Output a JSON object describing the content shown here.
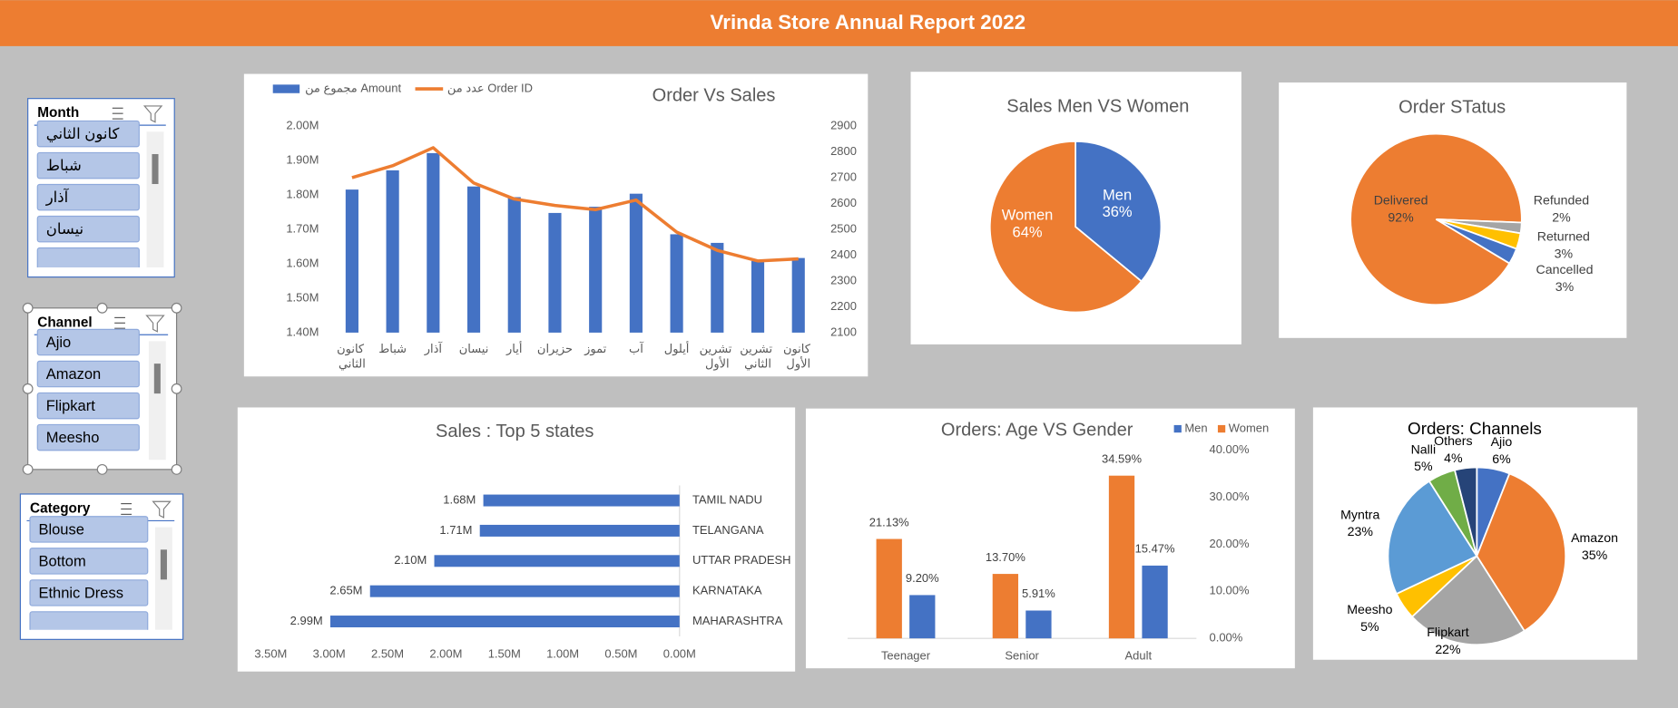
{
  "header": {
    "title": "Vrinda Store Annual Report 2022"
  },
  "slicers": [
    {
      "title": "Month",
      "items": [
        "كانون الثاني",
        "شباط",
        "آذار",
        "نيسان"
      ]
    },
    {
      "title": "Channel",
      "items": [
        "Ajio",
        "Amazon",
        "Flipkart",
        "Meesho"
      ]
    },
    {
      "title": "Category",
      "items": [
        "Blouse",
        "Bottom",
        "Ethnic Dress"
      ]
    }
  ],
  "chart_data": [
    {
      "type": "combo",
      "title": "Order Vs Sales",
      "categories": [
        "كانون الثاني",
        "شباط",
        "آذار",
        "نيسان",
        "أيار",
        "حزيران",
        "تموز",
        "آب",
        "أيلول",
        "تشرين الأول",
        "تشرين الثاني",
        "كانون الأول"
      ],
      "series": [
        {
          "name": "مجموع من Amount",
          "type": "bar",
          "color": "#4472c4",
          "values": [
            1816000,
            1872000,
            1922000,
            1825000,
            1794000,
            1748000,
            1766000,
            1804000,
            1686000,
            1661000,
            1608000,
            1617000
          ]
        },
        {
          "name": "عدد من Order ID",
          "type": "line",
          "axis": "y2",
          "color": "#ed7d31",
          "values": [
            2701,
            2747,
            2817,
            2680,
            2618,
            2593,
            2577,
            2614,
            2490,
            2419,
            2378,
            2386
          ]
        }
      ],
      "ylim": [
        1400000,
        2000000
      ],
      "yticks": [
        {
          "value": 1400000,
          "label": "1.40M"
        },
        {
          "value": 1500000,
          "label": "1.50M"
        },
        {
          "value": 1600000,
          "label": "1.60M"
        },
        {
          "value": 1700000,
          "label": "1.70M"
        },
        {
          "value": 1800000,
          "label": "1.80M"
        },
        {
          "value": 1900000,
          "label": "1.90M"
        },
        {
          "value": 2000000,
          "label": "2.00M"
        }
      ],
      "y2lim": [
        2100,
        2900
      ],
      "y2ticks": [
        2100,
        2200,
        2300,
        2400,
        2500,
        2600,
        2700,
        2800,
        2900
      ]
    },
    {
      "type": "pie",
      "title": "Sales Men VS Women",
      "categories": [
        "Men",
        "Women"
      ],
      "values": [
        36,
        64
      ],
      "value_labels": [
        "36%",
        "64%"
      ],
      "colors": [
        "#4472c4",
        "#ed7d31"
      ]
    },
    {
      "type": "pie",
      "title": "Order STatus",
      "categories": [
        "Delivered",
        "Refunded",
        "Returned",
        "Cancelled"
      ],
      "values": [
        92,
        2,
        3,
        3
      ],
      "value_labels": [
        "92%",
        "2%",
        "3%",
        "3%"
      ],
      "colors": [
        "#ed7d31",
        "#a5a5a5",
        "#ffc000",
        "#4472c4"
      ]
    },
    {
      "type": "hbar",
      "title": "Sales : Top 5 states",
      "categories": [
        "TAMIL NADU",
        "TELANGANA",
        "UTTAR PRADESH",
        "KARNATAKA",
        "MAHARASHTRA"
      ],
      "values": [
        1680000,
        1710000,
        2100000,
        2650000,
        2990000
      ],
      "value_labels": [
        "1.68M",
        "1.71M",
        "2.10M",
        "2.65M",
        "2.99M"
      ],
      "color": "#4472c4",
      "xlim": [
        3500000,
        0
      ],
      "xticks": [
        {
          "value": 3500000,
          "label": "3.50M"
        },
        {
          "value": 3000000,
          "label": "3.00M"
        },
        {
          "value": 2500000,
          "label": "2.50M"
        },
        {
          "value": 2000000,
          "label": "2.00M"
        },
        {
          "value": 1500000,
          "label": "1.50M"
        },
        {
          "value": 1000000,
          "label": "1.00M"
        },
        {
          "value": 500000,
          "label": "0.50M"
        },
        {
          "value": 0,
          "label": "0.00M"
        }
      ]
    },
    {
      "type": "bar",
      "title": "Orders: Age VS Gender",
      "categories": [
        "Teenager",
        "Senior",
        "Adult"
      ],
      "series": [
        {
          "name": "Women",
          "color": "#ed7d31",
          "values": [
            21.13,
            13.7,
            34.59
          ],
          "value_labels": [
            "21.13%",
            "13.70%",
            "34.59%"
          ]
        },
        {
          "name": "Men",
          "color": "#4472c4",
          "values": [
            9.2,
            5.91,
            15.47
          ],
          "value_labels": [
            "9.20%",
            "5.91%",
            "15.47%"
          ]
        }
      ],
      "ylim": [
        0,
        40
      ],
      "yticks": [
        {
          "value": 0,
          "label": "0.00%"
        },
        {
          "value": 10,
          "label": "10.00%"
        },
        {
          "value": 20,
          "label": "20.00%"
        },
        {
          "value": 30,
          "label": "30.00%"
        },
        {
          "value": 40,
          "label": "40.00%"
        }
      ]
    },
    {
      "type": "pie",
      "title": "Orders: Channels",
      "categories": [
        "Ajio",
        "Amazon",
        "Flipkart",
        "Meesho",
        "Myntra",
        "Nalli",
        "Others"
      ],
      "values": [
        6,
        35,
        22,
        5,
        23,
        5,
        4
      ],
      "value_labels": [
        "6%",
        "35%",
        "22%",
        "5%",
        "23%",
        "5%",
        "4%"
      ],
      "colors": [
        "#4472c4",
        "#ed7d31",
        "#a5a5a5",
        "#ffc000",
        "#5b9bd5",
        "#70ad47",
        "#264478"
      ]
    }
  ]
}
